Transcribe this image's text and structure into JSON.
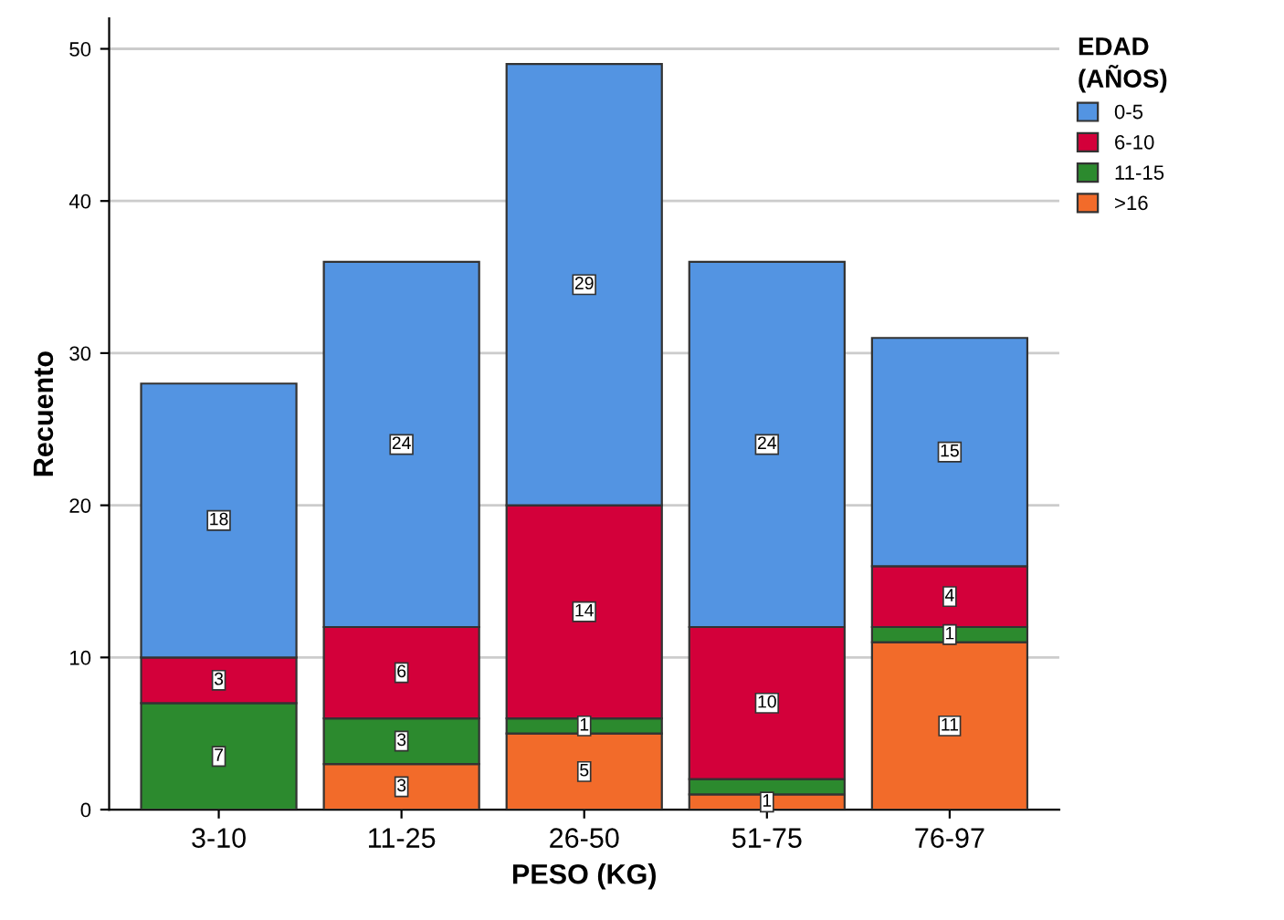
{
  "chart_data": {
    "type": "bar",
    "stacked": true,
    "xlabel": "PESO (KG)",
    "ylabel": "Recuento",
    "legend_title": "EDAD\n(AÑOS)",
    "legend": "top right",
    "grid": "y",
    "categories": [
      "3-10",
      "11-25",
      "26-50",
      "51-75",
      "76-97"
    ],
    "ylim": [
      0,
      52
    ],
    "yticks": [
      0,
      10,
      20,
      30,
      40,
      50
    ],
    "series": [
      {
        "name": ">16",
        "color": "#f26b2a",
        "values": [
          0,
          3,
          5,
          1,
          11
        ],
        "value_labels": [
          null,
          "3",
          "5",
          "1",
          "11"
        ]
      },
      {
        "name": "11-15",
        "color": "#2c8a2e",
        "values": [
          7,
          3,
          1,
          1,
          1
        ],
        "value_labels": [
          "7",
          "3",
          "1",
          null,
          "1"
        ]
      },
      {
        "name": "6-10",
        "color": "#d3003a",
        "values": [
          3,
          6,
          14,
          10,
          4
        ],
        "value_labels": [
          "3",
          "6",
          "14",
          "10",
          "4"
        ]
      },
      {
        "name": "0-5",
        "color": "#5394e2",
        "values": [
          18,
          24,
          29,
          24,
          15
        ],
        "value_labels": [
          "18",
          "24",
          "29",
          "24",
          "15"
        ]
      }
    ]
  }
}
